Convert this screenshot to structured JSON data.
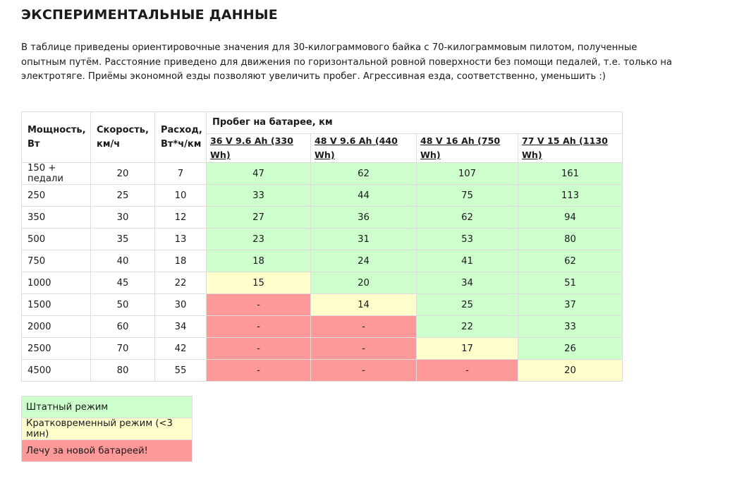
{
  "page": {
    "title": "ЭКСПЕРИМЕНТАЛЬНЫЕ ДАННЫЕ",
    "intro": "В таблице приведены ориентировочные значения для 30-килограммового байка с 70-килограммовым пилотом, полученные опытным путём. Расстояние приведено для движения по горизонтальной ровной поверхности без помощи педалей, т.е. только на электротяге. Приёмы экономной езды позволяют увеличить пробег. Агрессивная езда, соответственно, уменьшить :)"
  },
  "table": {
    "headers": {
      "power": "Мощность, Вт",
      "speed": "Скорость, км/ч",
      "consumption": "Расход, Вт*ч/км",
      "range_group": "Пробег на батарее, км",
      "batteries": [
        "36 V 9.6 Ah (330 Wh)",
        "48 V 9.6 Ah (440 Wh)",
        "48 V 16 Ah (750 Wh)",
        "77 V 15 Ah (1130 Wh)"
      ]
    },
    "rows": [
      {
        "power": "150 + педали",
        "speed": "20",
        "consumption": "7",
        "ranges": [
          "47",
          "62",
          "107",
          "161"
        ],
        "status": [
          "g",
          "g",
          "g",
          "g"
        ]
      },
      {
        "power": "250",
        "speed": "25",
        "consumption": "10",
        "ranges": [
          "33",
          "44",
          "75",
          "113"
        ],
        "status": [
          "g",
          "g",
          "g",
          "g"
        ]
      },
      {
        "power": "350",
        "speed": "30",
        "consumption": "12",
        "ranges": [
          "27",
          "36",
          "62",
          "94"
        ],
        "status": [
          "g",
          "g",
          "g",
          "g"
        ]
      },
      {
        "power": "500",
        "speed": "35",
        "consumption": "13",
        "ranges": [
          "23",
          "31",
          "53",
          "80"
        ],
        "status": [
          "g",
          "g",
          "g",
          "g"
        ]
      },
      {
        "power": "750",
        "speed": "40",
        "consumption": "18",
        "ranges": [
          "18",
          "24",
          "41",
          "62"
        ],
        "status": [
          "g",
          "g",
          "g",
          "g"
        ]
      },
      {
        "power": "1000",
        "speed": "45",
        "consumption": "22",
        "ranges": [
          "15",
          "20",
          "34",
          "51"
        ],
        "status": [
          "y",
          "g",
          "g",
          "g"
        ]
      },
      {
        "power": "1500",
        "speed": "50",
        "consumption": "30",
        "ranges": [
          "-",
          "14",
          "25",
          "37"
        ],
        "status": [
          "r",
          "y",
          "g",
          "g"
        ]
      },
      {
        "power": "2000",
        "speed": "60",
        "consumption": "34",
        "ranges": [
          "-",
          "-",
          "22",
          "33"
        ],
        "status": [
          "r",
          "r",
          "g",
          "g"
        ]
      },
      {
        "power": "2500",
        "speed": "70",
        "consumption": "42",
        "ranges": [
          "-",
          "-",
          "17",
          "26"
        ],
        "status": [
          "r",
          "r",
          "y",
          "g"
        ]
      },
      {
        "power": "4500",
        "speed": "80",
        "consumption": "55",
        "ranges": [
          "-",
          "-",
          "-",
          "20"
        ],
        "status": [
          "r",
          "r",
          "r",
          "y"
        ]
      }
    ]
  },
  "legend": [
    {
      "label": "Штатный режим",
      "color": "#ccffcc"
    },
    {
      "label": "Кратковременный режим (<3 мин)",
      "color": "#ffffcc"
    },
    {
      "label": "Лечу за новой батареей!",
      "color": "#ff9999"
    }
  ],
  "colors": {
    "normal": "#ccffcc",
    "short": "#ffffcc",
    "critical": "#ff9999",
    "border": "#dcdcdc"
  }
}
